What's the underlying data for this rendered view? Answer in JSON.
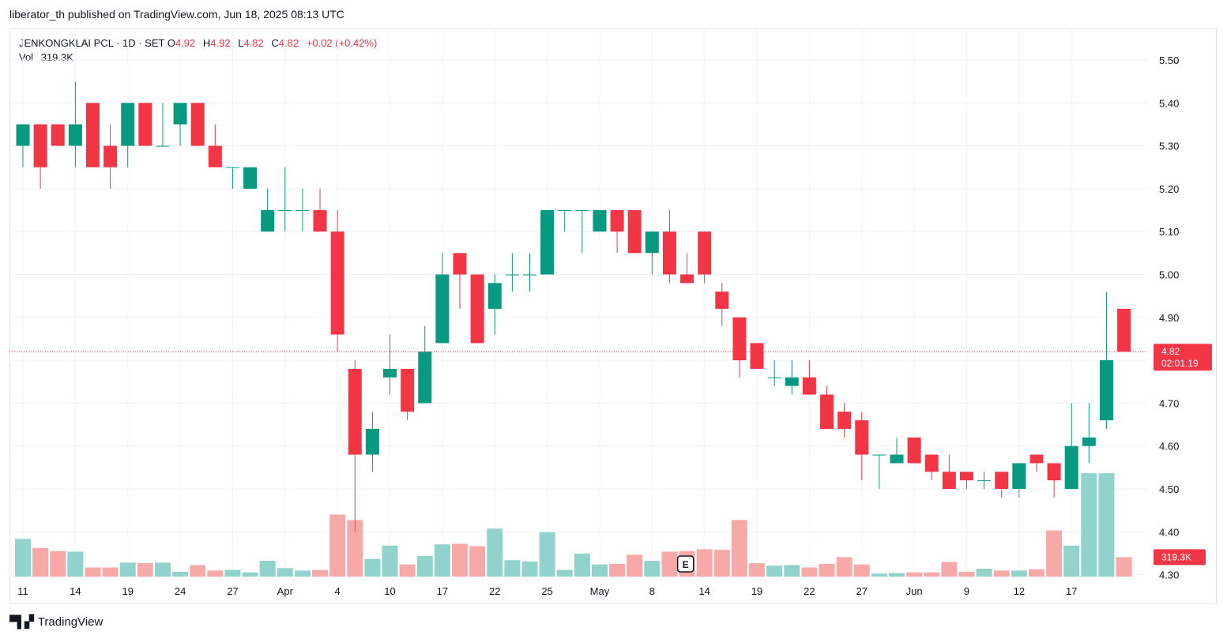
{
  "header": {
    "publisher": "liberator_th published on TradingView.com, Jun 18, 2025 08:13 UTC"
  },
  "legend": {
    "symbol": "JENKONGKLAI PCL · 1D · SET",
    "o_label": "O",
    "o_value": "4.92",
    "h_label": "H",
    "h_value": "4.92",
    "l_label": "L",
    "l_value": "4.82",
    "c_label": "C",
    "c_value": "4.82",
    "change": "+0.02 (+0.42%)",
    "vol_label": "Vol",
    "vol_value": "319.3K"
  },
  "badges": {
    "price": "4.82",
    "countdown": "02:01:19",
    "volume": "319.3K",
    "event": "E"
  },
  "footer": {
    "brand": "TradingView"
  },
  "colors": {
    "up": "#089981",
    "down": "#f23645",
    "up_vol": "#92d2cc",
    "down_vol": "#f7a9a7",
    "grid": "#f0f3fa"
  },
  "chart_data": {
    "type": "candlestick",
    "y_ticks": [
      "5.50",
      "5.40",
      "5.30",
      "5.20",
      "5.10",
      "5.00",
      "4.90",
      "4.80",
      "4.70",
      "4.60",
      "4.50",
      "4.40",
      "4.30"
    ],
    "ylim": [
      4.3,
      5.55
    ],
    "last_price": 4.82,
    "x_ticks": [
      {
        "label": "11",
        "i": 0
      },
      {
        "label": "14",
        "i": 3
      },
      {
        "label": "19",
        "i": 6
      },
      {
        "label": "24",
        "i": 9
      },
      {
        "label": "27",
        "i": 12
      },
      {
        "label": "Apr",
        "i": 15
      },
      {
        "label": "4",
        "i": 18
      },
      {
        "label": "10",
        "i": 21
      },
      {
        "label": "17",
        "i": 24
      },
      {
        "label": "22",
        "i": 27
      },
      {
        "label": "25",
        "i": 30
      },
      {
        "label": "May",
        "i": 33
      },
      {
        "label": "8",
        "i": 36
      },
      {
        "label": "14",
        "i": 39
      },
      {
        "label": "19",
        "i": 42
      },
      {
        "label": "22",
        "i": 45
      },
      {
        "label": "27",
        "i": 48
      },
      {
        "label": "Jun",
        "i": 51
      },
      {
        "label": "9",
        "i": 54
      },
      {
        "label": "12",
        "i": 57
      },
      {
        "label": "17",
        "i": 60
      }
    ],
    "event_index": 39,
    "candles": [
      {
        "o": 5.3,
        "h": 5.35,
        "l": 5.25,
        "c": 5.35,
        "v": 62
      },
      {
        "o": 5.35,
        "h": 5.35,
        "l": 5.2,
        "c": 5.25,
        "v": 47
      },
      {
        "o": 5.35,
        "h": 5.35,
        "l": 5.3,
        "c": 5.3,
        "v": 42
      },
      {
        "o": 5.3,
        "h": 5.45,
        "l": 5.25,
        "c": 5.35,
        "v": 41
      },
      {
        "o": 5.4,
        "h": 5.4,
        "l": 5.25,
        "c": 5.25,
        "v": 15
      },
      {
        "o": 5.3,
        "h": 5.35,
        "l": 5.2,
        "c": 5.25,
        "v": 15
      },
      {
        "o": 5.3,
        "h": 5.4,
        "l": 5.25,
        "c": 5.4,
        "v": 23
      },
      {
        "o": 5.4,
        "h": 5.4,
        "l": 5.3,
        "c": 5.3,
        "v": 22
      },
      {
        "o": 5.3,
        "h": 5.4,
        "l": 5.3,
        "c": 5.3,
        "v": 23
      },
      {
        "o": 5.35,
        "h": 5.4,
        "l": 5.3,
        "c": 5.4,
        "v": 8
      },
      {
        "o": 5.4,
        "h": 5.4,
        "l": 5.3,
        "c": 5.3,
        "v": 19
      },
      {
        "o": 5.3,
        "h": 5.35,
        "l": 5.25,
        "c": 5.25,
        "v": 10
      },
      {
        "o": 5.25,
        "h": 5.25,
        "l": 5.2,
        "c": 5.25,
        "v": 11
      },
      {
        "o": 5.2,
        "h": 5.25,
        "l": 5.2,
        "c": 5.25,
        "v": 7
      },
      {
        "o": 5.1,
        "h": 5.2,
        "l": 5.1,
        "c": 5.15,
        "v": 26
      },
      {
        "o": 5.15,
        "h": 5.25,
        "l": 5.1,
        "c": 5.15,
        "v": 14
      },
      {
        "o": 5.15,
        "h": 5.2,
        "l": 5.1,
        "c": 5.15,
        "v": 10
      },
      {
        "o": 5.15,
        "h": 5.2,
        "l": 5.1,
        "c": 5.1,
        "v": 11
      },
      {
        "o": 5.1,
        "h": 5.15,
        "l": 4.82,
        "c": 4.86,
        "v": 102
      },
      {
        "o": 4.78,
        "h": 4.8,
        "l": 4.4,
        "c": 4.58,
        "v": 93
      },
      {
        "o": 4.58,
        "h": 4.68,
        "l": 4.54,
        "c": 4.64,
        "v": 29
      },
      {
        "o": 4.76,
        "h": 4.86,
        "l": 4.72,
        "c": 4.78,
        "v": 51
      },
      {
        "o": 4.78,
        "h": 4.78,
        "l": 4.66,
        "c": 4.68,
        "v": 20
      },
      {
        "o": 4.7,
        "h": 4.88,
        "l": 4.7,
        "c": 4.82,
        "v": 34
      },
      {
        "o": 4.84,
        "h": 5.05,
        "l": 4.84,
        "c": 5.0,
        "v": 53
      },
      {
        "o": 5.05,
        "h": 5.05,
        "l": 4.92,
        "c": 5.0,
        "v": 54
      },
      {
        "o": 5.0,
        "h": 5.0,
        "l": 4.84,
        "c": 4.84,
        "v": 50
      },
      {
        "o": 4.92,
        "h": 5.0,
        "l": 4.86,
        "c": 4.98,
        "v": 79
      },
      {
        "o": 5.0,
        "h": 5.05,
        "l": 4.96,
        "c": 5.0,
        "v": 27
      },
      {
        "o": 5.0,
        "h": 5.05,
        "l": 4.96,
        "c": 5.0,
        "v": 25
      },
      {
        "o": 5.0,
        "h": 5.15,
        "l": 5.0,
        "c": 5.15,
        "v": 73
      },
      {
        "o": 5.15,
        "h": 5.15,
        "l": 5.1,
        "c": 5.15,
        "v": 11
      },
      {
        "o": 5.15,
        "h": 5.15,
        "l": 5.05,
        "c": 5.15,
        "v": 38
      },
      {
        "o": 5.1,
        "h": 5.15,
        "l": 5.1,
        "c": 5.15,
        "v": 20
      },
      {
        "o": 5.15,
        "h": 5.15,
        "l": 5.05,
        "c": 5.1,
        "v": 21
      },
      {
        "o": 5.15,
        "h": 5.15,
        "l": 5.05,
        "c": 5.05,
        "v": 36
      },
      {
        "o": 5.05,
        "h": 5.1,
        "l": 5.0,
        "c": 5.1,
        "v": 26
      },
      {
        "o": 5.1,
        "h": 5.15,
        "l": 4.98,
        "c": 5.0,
        "v": 41
      },
      {
        "o": 5.0,
        "h": 5.05,
        "l": 4.98,
        "c": 4.98,
        "v": 42
      },
      {
        "o": 5.1,
        "h": 5.1,
        "l": 4.98,
        "c": 5.0,
        "v": 45
      },
      {
        "o": 4.96,
        "h": 4.98,
        "l": 4.88,
        "c": 4.92,
        "v": 44
      },
      {
        "o": 4.9,
        "h": 4.9,
        "l": 4.76,
        "c": 4.8,
        "v": 93
      },
      {
        "o": 4.84,
        "h": 4.84,
        "l": 4.78,
        "c": 4.78,
        "v": 22
      },
      {
        "o": 4.76,
        "h": 4.8,
        "l": 4.74,
        "c": 4.76,
        "v": 18
      },
      {
        "o": 4.74,
        "h": 4.8,
        "l": 4.72,
        "c": 4.76,
        "v": 19
      },
      {
        "o": 4.76,
        "h": 4.8,
        "l": 4.72,
        "c": 4.72,
        "v": 15
      },
      {
        "o": 4.72,
        "h": 4.74,
        "l": 4.64,
        "c": 4.64,
        "v": 21
      },
      {
        "o": 4.68,
        "h": 4.7,
        "l": 4.62,
        "c": 4.64,
        "v": 32
      },
      {
        "o": 4.66,
        "h": 4.68,
        "l": 4.52,
        "c": 4.58,
        "v": 20
      },
      {
        "o": 4.58,
        "h": 4.58,
        "l": 4.5,
        "c": 4.58,
        "v": 5
      },
      {
        "o": 4.56,
        "h": 4.62,
        "l": 4.56,
        "c": 4.58,
        "v": 6
      },
      {
        "o": 4.62,
        "h": 4.62,
        "l": 4.56,
        "c": 4.56,
        "v": 7
      },
      {
        "o": 4.58,
        "h": 4.58,
        "l": 4.52,
        "c": 4.54,
        "v": 7
      },
      {
        "o": 4.54,
        "h": 4.58,
        "l": 4.5,
        "c": 4.5,
        "v": 24
      },
      {
        "o": 4.54,
        "h": 4.54,
        "l": 4.5,
        "c": 4.52,
        "v": 8
      },
      {
        "o": 4.52,
        "h": 4.54,
        "l": 4.5,
        "c": 4.52,
        "v": 13
      },
      {
        "o": 4.54,
        "h": 4.54,
        "l": 4.48,
        "c": 4.5,
        "v": 10
      },
      {
        "o": 4.5,
        "h": 4.56,
        "l": 4.48,
        "c": 4.56,
        "v": 10
      },
      {
        "o": 4.58,
        "h": 4.58,
        "l": 4.54,
        "c": 4.56,
        "v": 12
      },
      {
        "o": 4.56,
        "h": 4.56,
        "l": 4.48,
        "c": 4.52,
        "v": 76
      },
      {
        "o": 4.5,
        "h": 4.7,
        "l": 4.5,
        "c": 4.6,
        "v": 51
      },
      {
        "o": 4.6,
        "h": 4.7,
        "l": 4.56,
        "c": 4.62,
        "v": 170
      },
      {
        "o": 4.66,
        "h": 4.96,
        "l": 4.64,
        "c": 4.8,
        "v": 170
      },
      {
        "o": 4.92,
        "h": 4.92,
        "l": 4.82,
        "c": 4.82,
        "v": 32
      }
    ]
  }
}
